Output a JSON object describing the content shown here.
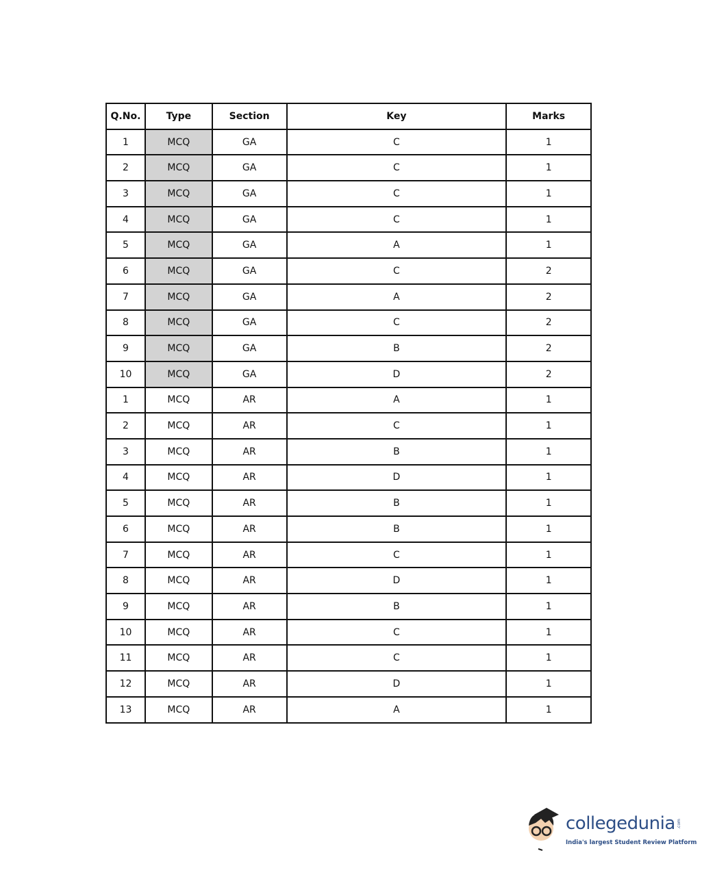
{
  "table": {
    "header": [
      "Q.No.",
      "Type",
      "Section",
      "Key",
      "Marks"
    ],
    "rows": [
      [
        "1",
        "MCQ",
        "GA",
        "C",
        "1"
      ],
      [
        "2",
        "MCQ",
        "GA",
        "C",
        "1"
      ],
      [
        "3",
        "MCQ",
        "GA",
        "C",
        "1"
      ],
      [
        "4",
        "MCQ",
        "GA",
        "C",
        "1"
      ],
      [
        "5",
        "MCQ",
        "GA",
        "A",
        "1"
      ],
      [
        "6",
        "MCQ",
        "GA",
        "C",
        "2"
      ],
      [
        "7",
        "MCQ",
        "GA",
        "A",
        "2"
      ],
      [
        "8",
        "MCQ",
        "GA",
        "C",
        "2"
      ],
      [
        "9",
        "MCQ",
        "GA",
        "B",
        "2"
      ],
      [
        "10",
        "MCQ",
        "GA",
        "D",
        "2"
      ],
      [
        "1",
        "MCQ",
        "AR",
        "A",
        "1"
      ],
      [
        "2",
        "MCQ",
        "AR",
        "C",
        "1"
      ],
      [
        "3",
        "MCQ",
        "AR",
        "B",
        "1"
      ],
      [
        "4",
        "MCQ",
        "AR",
        "D",
        "1"
      ],
      [
        "5",
        "MCQ",
        "AR",
        "B",
        "1"
      ],
      [
        "6",
        "MCQ",
        "AR",
        "B",
        "1"
      ],
      [
        "7",
        "MCQ",
        "AR",
        "C",
        "1"
      ],
      [
        "8",
        "MCQ",
        "AR",
        "D",
        "1"
      ],
      [
        "9",
        "MCQ",
        "AR",
        "B",
        "1"
      ],
      [
        "10",
        "MCQ",
        "AR",
        "C",
        "1"
      ],
      [
        "11",
        "MCQ",
        "AR",
        "C",
        "1"
      ],
      [
        "12",
        "MCQ",
        "AR",
        "D",
        "1"
      ],
      [
        "13",
        "MCQ",
        "AR",
        "A",
        "1"
      ]
    ]
  },
  "logo": {
    "name": "collegedunia",
    "suffix": ".com",
    "tagline": "India's largest Student Review Platform"
  }
}
